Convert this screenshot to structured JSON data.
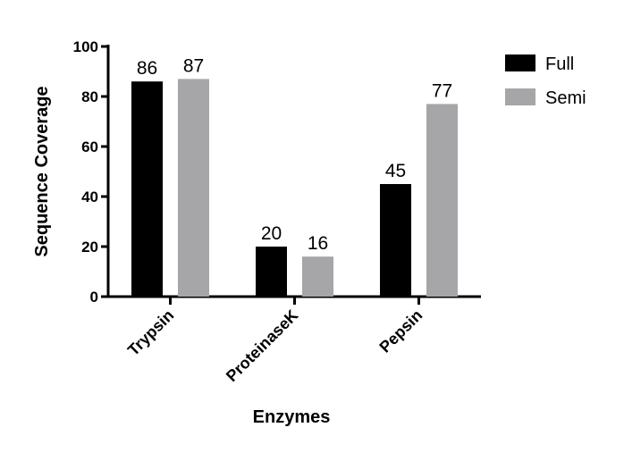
{
  "chart_data": {
    "type": "bar",
    "categories": [
      "Trypsin",
      "ProteinaseK",
      "Pepsin"
    ],
    "series": [
      {
        "name": "Full",
        "values": [
          86,
          20,
          45
        ],
        "color": "#000000"
      },
      {
        "name": "Semi",
        "values": [
          87,
          16,
          77
        ],
        "color": "#a6a6a8"
      }
    ],
    "data_labels": [
      [
        "86",
        "20",
        "45"
      ],
      [
        "87",
        "16",
        "77"
      ]
    ],
    "xlabel": "Enzymes",
    "ylabel": "Sequence  Coverage",
    "ylim": [
      0,
      100
    ],
    "yticks": [
      "0",
      "20",
      "40",
      "60",
      "80",
      "100"
    ],
    "grid": false,
    "legend_position": "top-right"
  }
}
